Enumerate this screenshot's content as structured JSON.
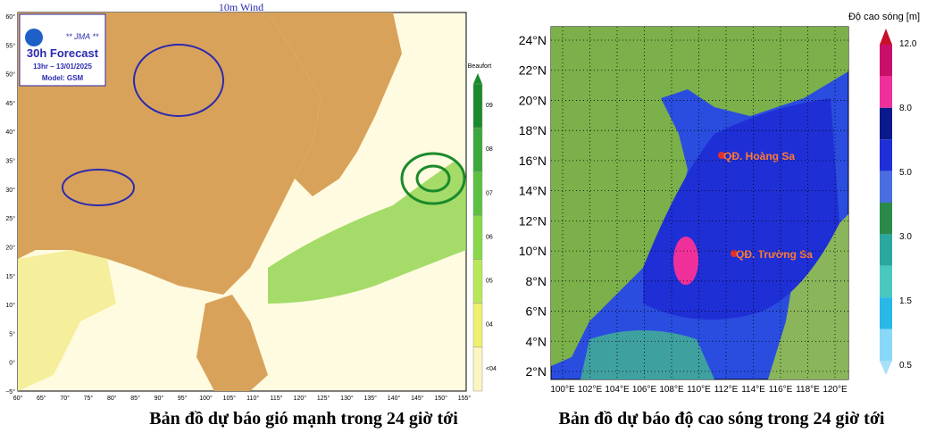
{
  "wind_map": {
    "title": "10m Wind",
    "agency": "** JMA **",
    "forecast": "30h Forecast",
    "time": "13hr – 13/01/2025",
    "model": "Model: GSM",
    "colorbar_title": "Beaufort",
    "colorbar_labels": [
      "09",
      "08",
      "07",
      "06",
      "05",
      "04",
      "<04"
    ],
    "lat_labels": [
      "60°",
      "55°",
      "50°",
      "45°",
      "40°",
      "35°",
      "30°",
      "25°",
      "20°",
      "15°",
      "10°",
      "5°",
      "0°",
      "−5°"
    ],
    "lon_labels": [
      "60°",
      "65°",
      "70°",
      "75°",
      "80°",
      "85°",
      "90°",
      "95°",
      "100°",
      "105°",
      "110°",
      "115°",
      "120°",
      "125°",
      "130°",
      "135°",
      "140°",
      "145°",
      "150°",
      "155°"
    ],
    "caption": "Bản đồ dự báo gió mạnh trong 24 giờ tới"
  },
  "wave_map": {
    "colorbar_title": "Độ cao sóng [m]",
    "colorbar_labels": [
      "12.0",
      "8.0",
      "5.0",
      "3.0",
      "1.5",
      "0.5"
    ],
    "lat_labels": [
      "24°N",
      "22°N",
      "20°N",
      "18°N",
      "16°N",
      "14°N",
      "12°N",
      "10°N",
      "8°N",
      "6°N",
      "4°N",
      "2°N"
    ],
    "lon_labels": [
      "100°E",
      "102°E",
      "104°E",
      "106°E",
      "108°E",
      "110°E",
      "112°E",
      "114°E",
      "116°E",
      "118°E",
      "120°E"
    ],
    "annotations": [
      "QĐ. Hoàng Sa",
      "QĐ. Trường Sa"
    ],
    "caption": "Bản đồ dự báo độ cao sóng trong 24 giờ tới"
  }
}
